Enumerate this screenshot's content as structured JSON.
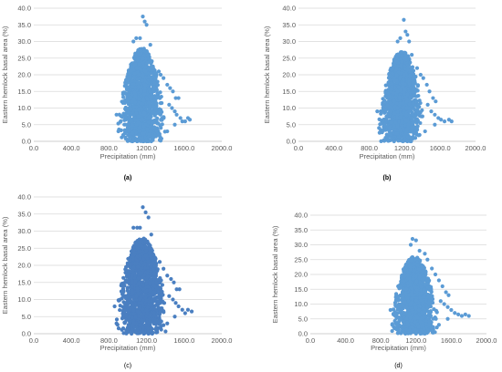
{
  "chart_data": [
    {
      "type": "scatter",
      "caption": "(a)",
      "xlabel": "Precipitation (mm)",
      "ylabel": "Eastern hemlock basal area (%)",
      "xlim": [
        0,
        2000
      ],
      "ylim": [
        0,
        40
      ],
      "xticks": [
        "0.0",
        "400.0",
        "800.0",
        "1200.0",
        "1600.0",
        "2000.0"
      ],
      "yticks": [
        "0.0",
        "5.0",
        "10.0",
        "15.0",
        "20.0",
        "25.0",
        "30.0",
        "35.0",
        "40.0"
      ],
      "grid": true,
      "color": "#5b9bd5",
      "cluster": {
        "x_min": 880,
        "x_max": 1420,
        "x_center": 1150,
        "y_max_at_center": 28,
        "y_min": 0
      },
      "points": [
        [
          1160,
          37.5
        ],
        [
          1180,
          36
        ],
        [
          1200,
          35
        ],
        [
          1130,
          31
        ],
        [
          1090,
          31
        ],
        [
          1060,
          30
        ],
        [
          1240,
          29
        ],
        [
          1270,
          22
        ],
        [
          1330,
          21
        ],
        [
          1350,
          20
        ],
        [
          1380,
          19
        ],
        [
          1420,
          17
        ],
        [
          1450,
          16
        ],
        [
          1480,
          15
        ],
        [
          1510,
          13
        ],
        [
          1540,
          13
        ],
        [
          1440,
          11
        ],
        [
          1470,
          10
        ],
        [
          1500,
          9
        ],
        [
          1520,
          8
        ],
        [
          1560,
          7
        ],
        [
          1580,
          6
        ],
        [
          1610,
          6
        ],
        [
          1640,
          7
        ],
        [
          1660,
          6.5
        ],
        [
          1500,
          5
        ],
        [
          1420,
          3
        ],
        [
          1300,
          1.5
        ],
        [
          1160,
          0
        ],
        [
          1200,
          0
        ],
        [
          1250,
          0
        ],
        [
          1050,
          0
        ],
        [
          900,
          3
        ],
        [
          880,
          8
        ]
      ]
    },
    {
      "type": "scatter",
      "caption": "(b)",
      "xlabel": "Precipitation (mm)",
      "ylabel": "Eastern hemlock basal area (%)",
      "xlim": [
        0,
        2000
      ],
      "ylim": [
        0,
        40
      ],
      "xticks": [
        "0.0",
        "400.0",
        "800.0",
        "1200.0",
        "1600.0",
        "2000.0"
      ],
      "yticks": [
        "0.0",
        "5.0",
        "10.0",
        "15.0",
        "20.0",
        "25.0",
        "30.0",
        "35.0",
        "40.0"
      ],
      "grid": true,
      "color": "#5b9bd5",
      "cluster": {
        "x_min": 880,
        "x_max": 1430,
        "x_center": 1170,
        "y_max_at_center": 27,
        "y_min": 0
      },
      "points": [
        [
          1190,
          36.5
        ],
        [
          1210,
          33
        ],
        [
          1230,
          32
        ],
        [
          1150,
          31
        ],
        [
          1120,
          30
        ],
        [
          1250,
          30
        ],
        [
          1280,
          26
        ],
        [
          1340,
          22
        ],
        [
          1380,
          20
        ],
        [
          1410,
          19
        ],
        [
          1450,
          17
        ],
        [
          1480,
          15
        ],
        [
          1520,
          13
        ],
        [
          1550,
          12
        ],
        [
          1460,
          11
        ],
        [
          1500,
          9
        ],
        [
          1540,
          8
        ],
        [
          1580,
          7
        ],
        [
          1610,
          6.5
        ],
        [
          1650,
          6
        ],
        [
          1700,
          6.5
        ],
        [
          1730,
          6
        ],
        [
          1540,
          5
        ],
        [
          1430,
          3
        ],
        [
          1320,
          1
        ],
        [
          1180,
          0
        ],
        [
          1230,
          0
        ],
        [
          1270,
          0
        ],
        [
          1080,
          0
        ],
        [
          910,
          4
        ],
        [
          890,
          9
        ]
      ]
    },
    {
      "type": "scatter",
      "caption": "(c)",
      "xlabel": "Precipitation (mm)",
      "ylabel": "Eastern hemlock basal area (%)",
      "xlim": [
        0,
        2000
      ],
      "ylim": [
        0,
        40
      ],
      "xticks": [
        "0.0",
        "400.0",
        "800.0",
        "1200.0",
        "1600.0",
        "2000.0"
      ],
      "yticks": [
        "0.0",
        "5.0",
        "10.0",
        "15.0",
        "20.0",
        "25.0",
        "30.0",
        "35.0",
        "40.0"
      ],
      "grid": true,
      "color": "#4a7fc1",
      "cluster": {
        "x_min": 860,
        "x_max": 1440,
        "x_center": 1150,
        "y_max_at_center": 28,
        "y_min": 0
      },
      "points": [
        [
          1160,
          37
        ],
        [
          1190,
          35.5
        ],
        [
          1220,
          34
        ],
        [
          1130,
          31
        ],
        [
          1100,
          31
        ],
        [
          1060,
          31
        ],
        [
          1250,
          29
        ],
        [
          1290,
          22
        ],
        [
          1340,
          21
        ],
        [
          1380,
          19
        ],
        [
          1420,
          17
        ],
        [
          1460,
          16
        ],
        [
          1490,
          15
        ],
        [
          1520,
          13
        ],
        [
          1550,
          13
        ],
        [
          1440,
          11
        ],
        [
          1480,
          10
        ],
        [
          1510,
          9
        ],
        [
          1540,
          8
        ],
        [
          1580,
          7
        ],
        [
          1610,
          6
        ],
        [
          1640,
          7
        ],
        [
          1680,
          6.5
        ],
        [
          1500,
          5
        ],
        [
          1420,
          3
        ],
        [
          1310,
          1
        ],
        [
          1170,
          0
        ],
        [
          1220,
          0
        ],
        [
          1260,
          0
        ],
        [
          1040,
          0
        ],
        [
          880,
          3
        ],
        [
          860,
          8
        ]
      ]
    },
    {
      "type": "scatter",
      "caption": "(d)",
      "xlabel": "Precipitation (mm)",
      "ylabel": "Eastern hemlock basal area (%)",
      "xlim": [
        0,
        2000
      ],
      "ylim": [
        0,
        40
      ],
      "xticks": [
        "0.0",
        "400.0",
        "800.0",
        "1200.0",
        "1600.0",
        "2000.0"
      ],
      "yticks": [
        "0.0",
        "5.0",
        "10.0",
        "15.0",
        "20.0",
        "25.0",
        "30.0",
        "35.0",
        "40.0"
      ],
      "grid": true,
      "color": "#5b9bd5",
      "cluster": {
        "x_min": 900,
        "x_max": 1460,
        "x_center": 1180,
        "y_max_at_center": 26,
        "y_min": 0
      },
      "points": [
        [
          1160,
          32
        ],
        [
          1200,
          31.5
        ],
        [
          1140,
          30
        ],
        [
          1240,
          28
        ],
        [
          1300,
          27
        ],
        [
          1330,
          25
        ],
        [
          1380,
          22
        ],
        [
          1420,
          20
        ],
        [
          1460,
          18
        ],
        [
          1500,
          16
        ],
        [
          1540,
          14
        ],
        [
          1570,
          13
        ],
        [
          1480,
          11
        ],
        [
          1520,
          10
        ],
        [
          1560,
          9
        ],
        [
          1600,
          8
        ],
        [
          1640,
          7
        ],
        [
          1680,
          6.5
        ],
        [
          1720,
          6
        ],
        [
          1760,
          6.5
        ],
        [
          1800,
          6
        ],
        [
          1560,
          5
        ],
        [
          1460,
          3
        ],
        [
          1340,
          1
        ],
        [
          1200,
          0
        ],
        [
          1250,
          0
        ],
        [
          1300,
          0
        ],
        [
          1080,
          0
        ],
        [
          930,
          3
        ],
        [
          910,
          8
        ]
      ]
    }
  ]
}
